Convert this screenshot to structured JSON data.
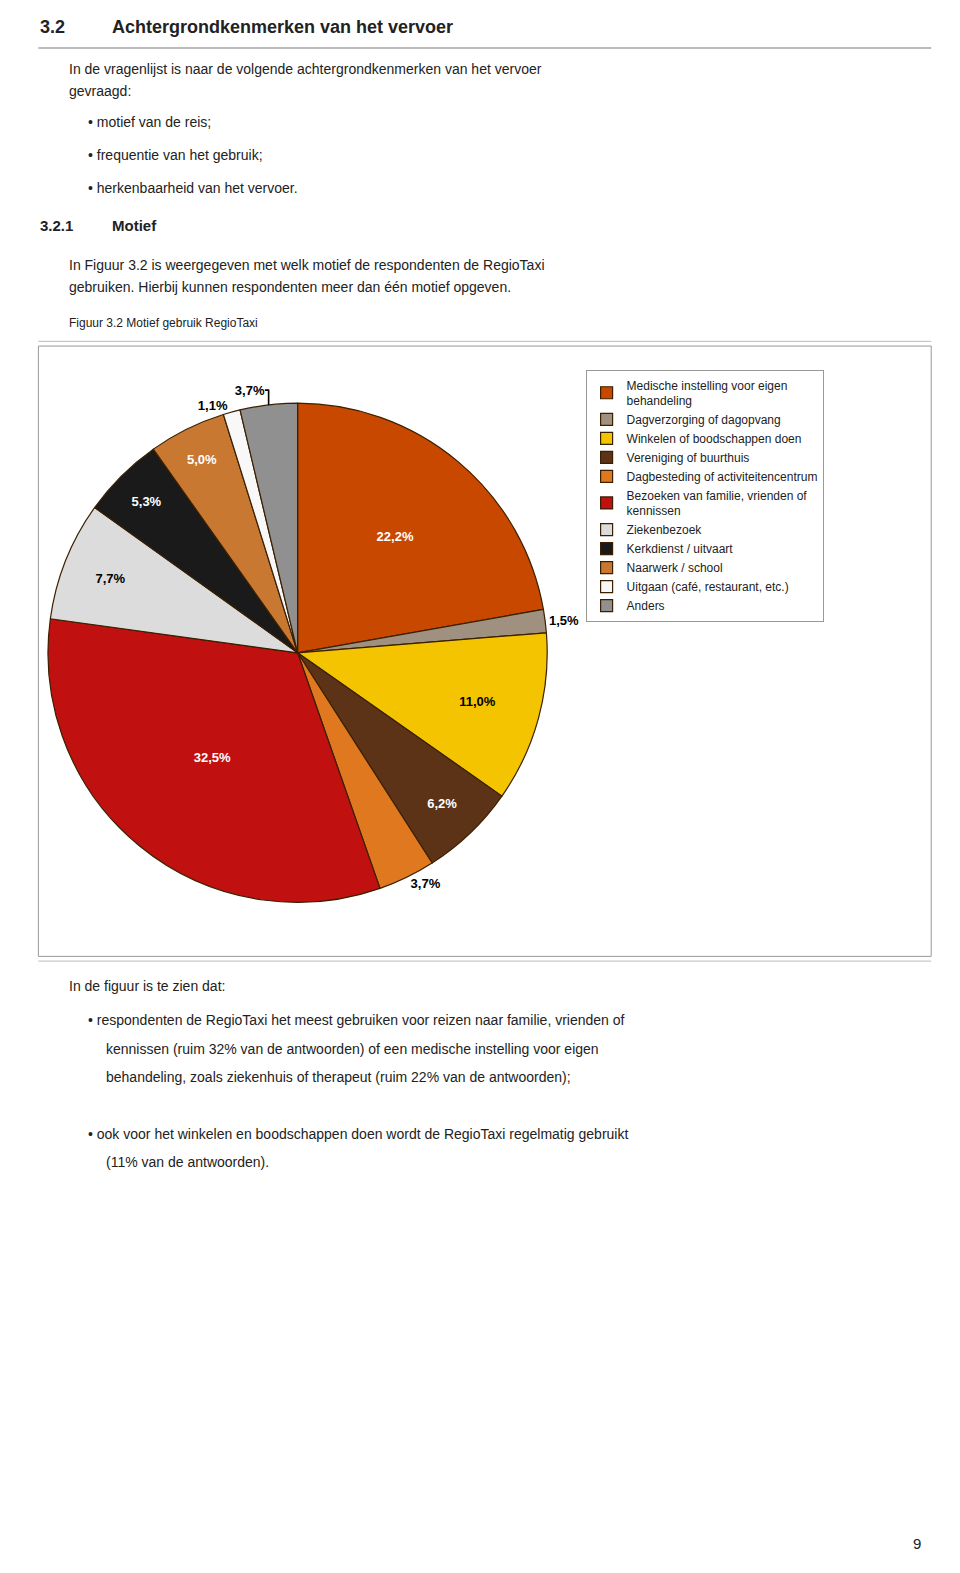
{
  "chart_data": {
    "type": "pie",
    "title": "Figuur 3.2 Motief gebruik RegioTaxi",
    "categories": [
      "Medische instelling voor eigen\nbehandeling",
      "Dagverzorging of dagopvang",
      "Winkelen of boodschappen doen",
      "Vereniging of buurthuis",
      "Dagbesteding of activiteitencentrum",
      "Bezoeken van familie, vrienden of\nkennissen",
      "Ziekenbezoek",
      "Kerkdienst / uitvaart",
      "Naarwerk / school",
      "Uitgaan (café, restaurant, etc.)",
      "Anders"
    ],
    "values": [
      22.2,
      1.5,
      11.0,
      6.2,
      3.7,
      32.5,
      7.7,
      5.3,
      5.0,
      1.1,
      3.7
    ],
    "value_labels": [
      "22,2%",
      "1,5%",
      "11,0%",
      "6,2%",
      "3,7%",
      "32,5%",
      "7,7%",
      "5,3%",
      "5,0%",
      "1,1%",
      "3,7%"
    ],
    "colors": [
      "#C84800",
      "#A09080",
      "#F5C400",
      "#5C3317",
      "#E07820",
      "#C01010",
      "#DCDCDC",
      "#1A1A1A",
      "#C87830",
      "#F8F8F8",
      "#909090"
    ],
    "data_labels": true,
    "legend": "right",
    "annotations": [
      "3.2",
      "Achtergrondkenmerken van het vervoer",
      "In de vragenlijst is naar de volgende achtergrondkenmerken van het vervoer",
      "gevraagd:",
      "• motief van de reis;",
      "• frequentie van het gebruik;",
      "• herkenbaarheid van het vervoer.",
      "3.2.1",
      "Motief",
      "In Figuur 3.2 is weergegeven met welk motief de respondenten de RegioTaxi",
      "gebruiken. Hierbij kunnen respondenten meer dan één motief opgeven.",
      "In de figuur is te zien dat:",
      "• respondenten de RegioTaxi het meest gebruiken voor reizen naar familie, vrienden of",
      "kennissen (ruim 32% van de antwoorden) of een medische instelling voor eigen",
      "behandeling, zoals ziekenhuis of therapeut (ruim 22% van de antwoorden);",
      "• ook voor het winkelen en boodschappen doen wordt de RegioTaxi regelmatig gebruikt",
      "(11% van de antwoorden).",
      "9"
    ]
  }
}
